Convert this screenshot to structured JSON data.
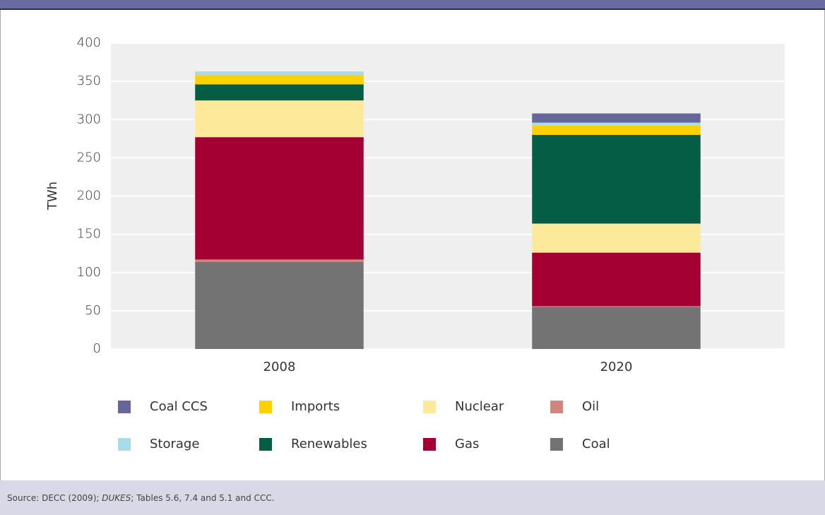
{
  "chart_data": {
    "type": "stacked_bar",
    "y_label": "TWh",
    "categories": [
      "2008",
      "2020"
    ],
    "series": [
      {
        "name": "Coal",
        "color": "#737373",
        "values": [
          114,
          55
        ]
      },
      {
        "name": "Oil",
        "color": "#d4847f",
        "values": [
          3,
          1
        ]
      },
      {
        "name": "Gas",
        "color": "#a50034",
        "values": [
          160,
          70
        ]
      },
      {
        "name": "Nuclear",
        "color": "#fde99a",
        "values": [
          48,
          38
        ]
      },
      {
        "name": "Renewables",
        "color": "#055d45",
        "values": [
          21,
          116
        ]
      },
      {
        "name": "Imports",
        "color": "#fcd100",
        "values": [
          12,
          12
        ]
      },
      {
        "name": "Storage",
        "color": "#a9dce9",
        "values": [
          5,
          4
        ]
      },
      {
        "name": "Coal CCS",
        "color": "#66669a",
        "values": [
          0,
          12
        ]
      }
    ],
    "ylim": [
      0,
      400
    ],
    "yticks": [
      0,
      50,
      100,
      150,
      200,
      250,
      300,
      350,
      400
    ],
    "grid": true,
    "source": [
      "Source: DECC (2009); ",
      "DUKES",
      "; Tables 5.6, 7.4 and 5.1 and CCC."
    ]
  }
}
